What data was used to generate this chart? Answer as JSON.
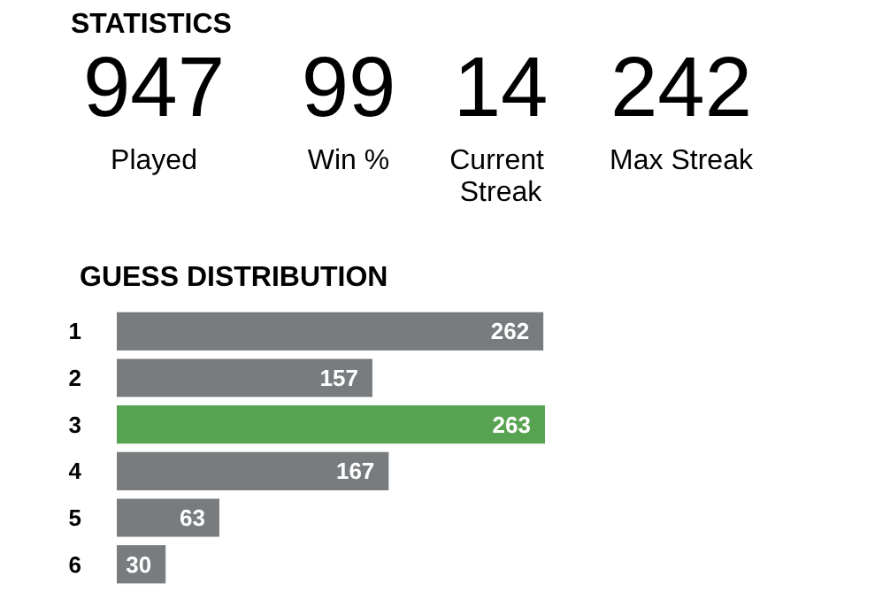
{
  "chart_data": [
    {
      "type": "other",
      "title": "STATISTICS",
      "categories": [
        "Played",
        "Win %",
        "Current Streak",
        "Max Streak"
      ],
      "values": [
        947,
        99,
        14,
        242
      ],
      "data_labels": true
    },
    {
      "type": "bar",
      "orientation": "horizontal",
      "title": "GUESS DISTRIBUTION",
      "categories": [
        "1",
        "2",
        "3",
        "4",
        "5",
        "6"
      ],
      "values": [
        262,
        157,
        263,
        167,
        63,
        30
      ],
      "colors": [
        "#787c7e",
        "#787c7e",
        "#58a351",
        "#787c7e",
        "#787c7e",
        "#787c7e"
      ],
      "data_labels": true
    }
  ]
}
